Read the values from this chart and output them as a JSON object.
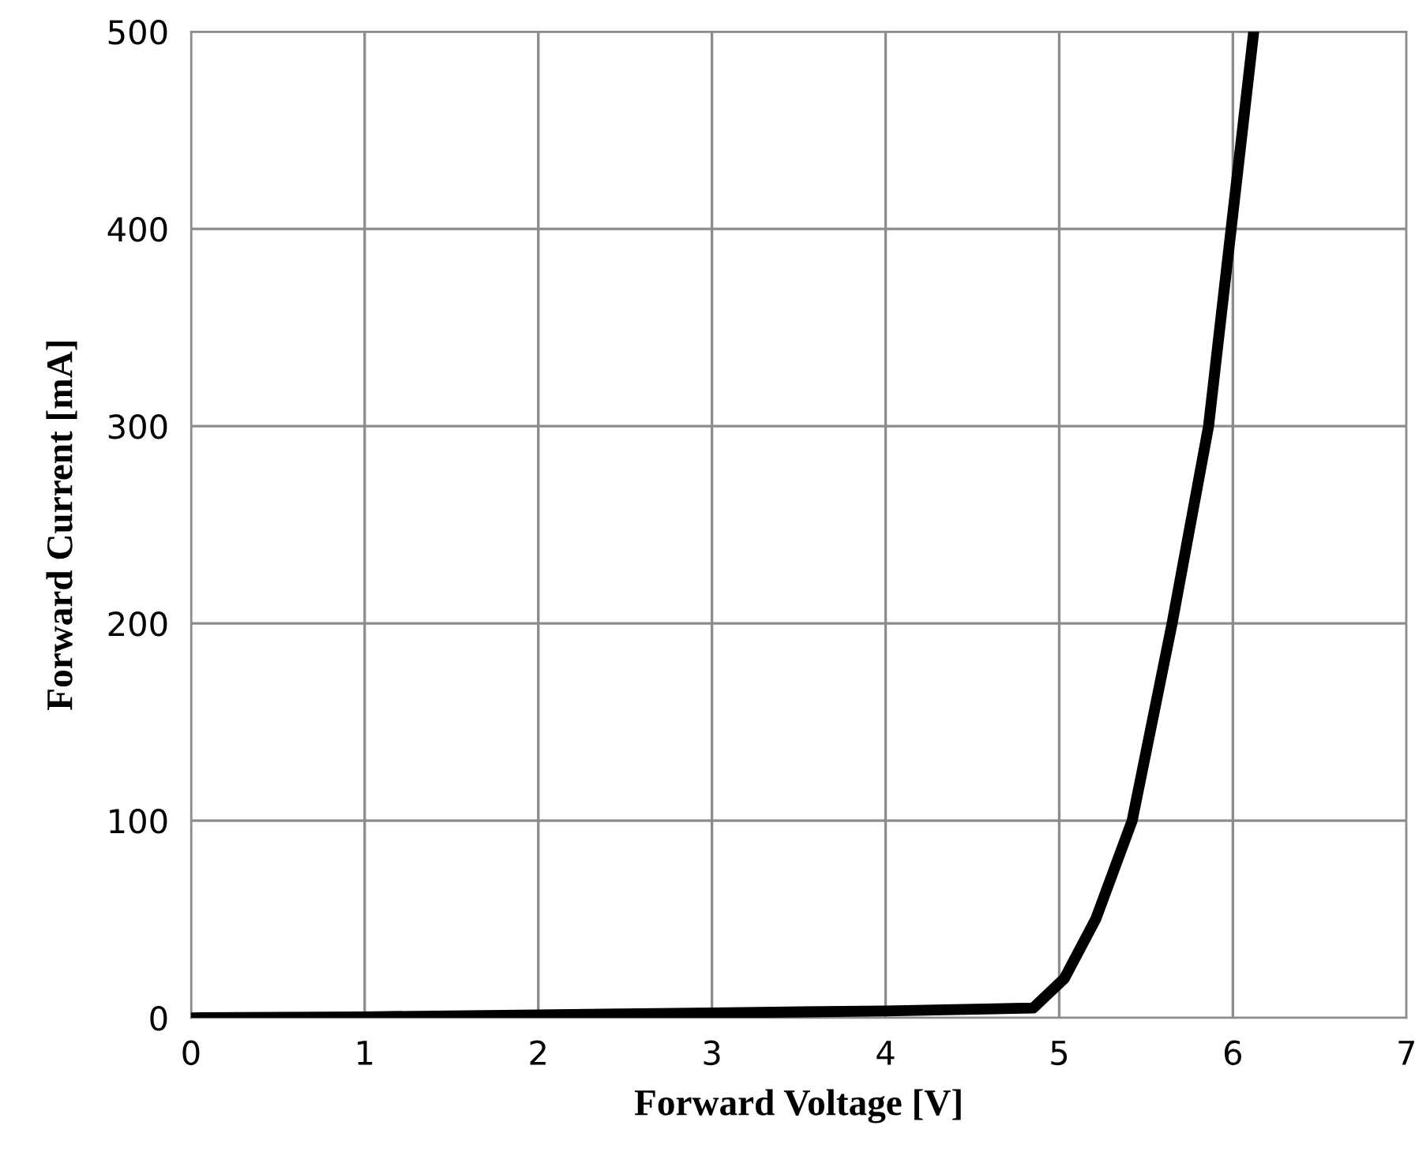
{
  "chart_data": {
    "type": "line",
    "xlabel": "Forward Voltage [V]",
    "ylabel": "Forward Current [mA]",
    "series": [
      {
        "color": "#000000",
        "x": [
          0,
          1,
          2,
          3,
          4,
          4.85,
          5.03,
          5.21,
          5.42,
          5.65,
          5.86,
          5.99,
          6.12
        ],
        "values": [
          0,
          0.5,
          1.5,
          2.5,
          3.5,
          5,
          20,
          50,
          100,
          200,
          300,
          400,
          500
        ]
      }
    ],
    "xlim": [
      0,
      7
    ],
    "xticks": [
      0,
      1,
      2,
      3,
      4,
      5,
      6,
      7
    ],
    "ylim": [
      0,
      500
    ],
    "yticks": [
      0,
      100,
      200,
      300,
      400,
      500
    ],
    "grid": true,
    "marker": "none",
    "line_style": "solid"
  }
}
